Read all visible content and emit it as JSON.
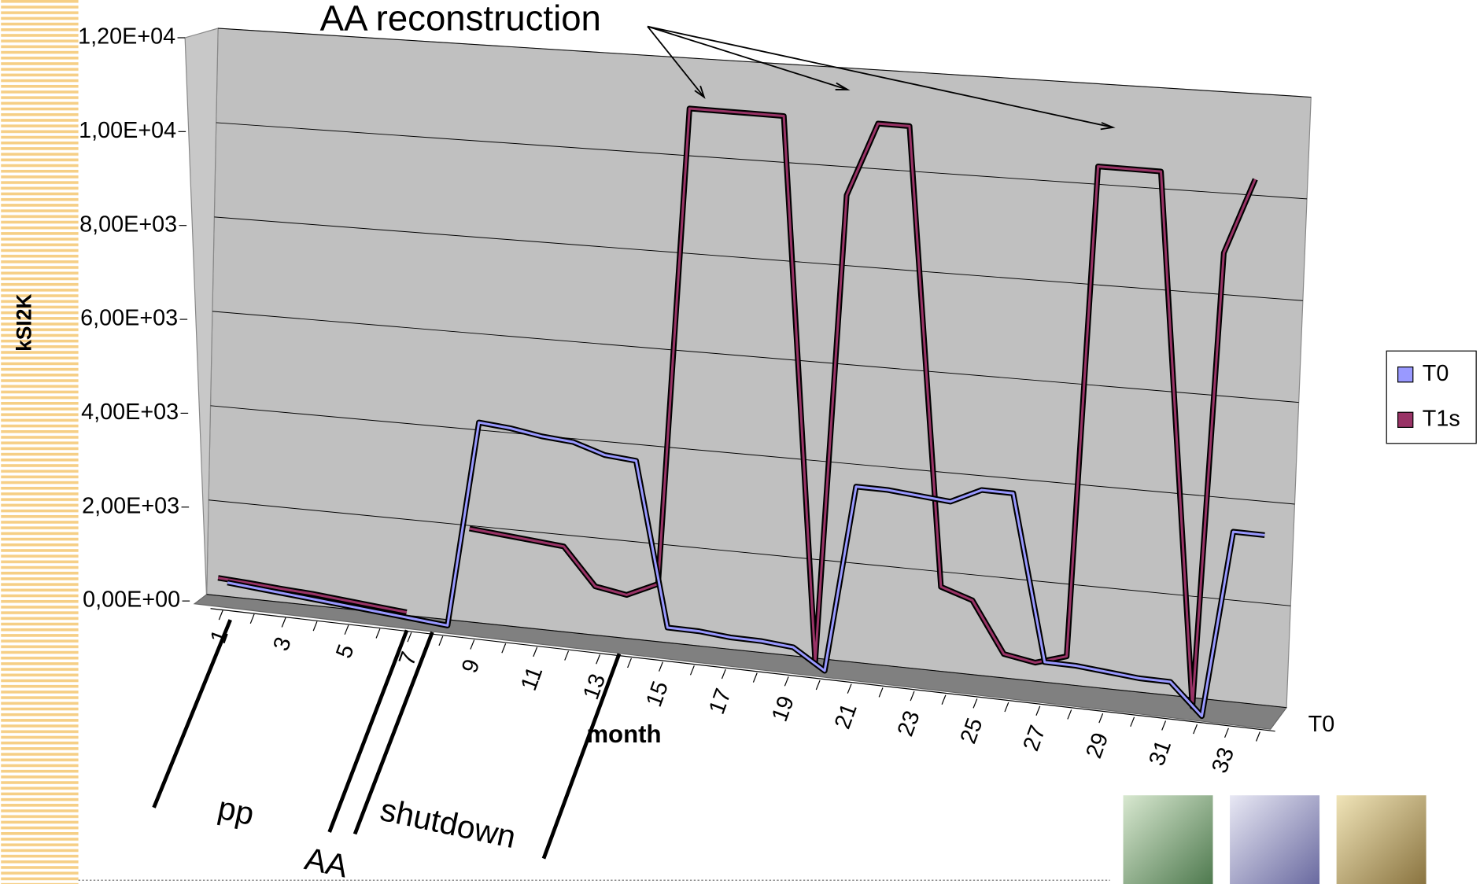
{
  "chart_data": {
    "type": "line3d",
    "annotations": [
      "AA reconstruction",
      "pp",
      "AA",
      "shutdown"
    ],
    "y_axis_label": "kSI2K",
    "x_axis_label": "month",
    "depth_label": "T0",
    "categories": [
      1,
      null,
      3,
      null,
      5,
      null,
      7,
      null,
      9,
      null,
      11,
      null,
      13,
      null,
      15,
      null,
      17,
      null,
      19,
      null,
      21,
      null,
      23,
      null,
      25,
      null,
      27,
      null,
      29,
      null,
      31,
      null,
      33,
      null
    ],
    "series": [
      {
        "name": "T0",
        "color": "#9999ff",
        "values": [
          350,
          300,
          250,
          200,
          150,
          100,
          50,
          0,
          4300,
          4250,
          4150,
          4100,
          3900,
          3850,
          500,
          500,
          450,
          450,
          400,
          0,
          3800,
          3800,
          3750,
          3700,
          4000,
          4000,
          700,
          700,
          650,
          600,
          600,
          0,
          3700,
          3700
        ]
      },
      {
        "name": "T1s",
        "color": "#993366",
        "values": [
          250,
          220,
          180,
          150,
          100,
          50,
          0,
          null,
          1900,
          1850,
          1800,
          1750,
          1000,
          900,
          1200,
          11000,
          11000,
          11000,
          11000,
          0,
          9500,
          11000,
          11000,
          1800,
          1600,
          600,
          500,
          700,
          10500,
          10500,
          10500,
          0,
          9000,
          10500
        ]
      }
    ],
    "ylim": [
      0,
      12000
    ],
    "yticks": [
      {
        "value": 0,
        "label": "0,00E+00"
      },
      {
        "value": 2000,
        "label": "2,00E+03"
      },
      {
        "value": 4000,
        "label": "4,00E+03"
      },
      {
        "value": 6000,
        "label": "6,00E+03"
      },
      {
        "value": 8000,
        "label": "8,00E+03"
      },
      {
        "value": 10000,
        "label": "1,00E+04"
      },
      {
        "value": 12000,
        "label": "1,20E+04"
      }
    ],
    "grid": true,
    "legend": "right"
  }
}
